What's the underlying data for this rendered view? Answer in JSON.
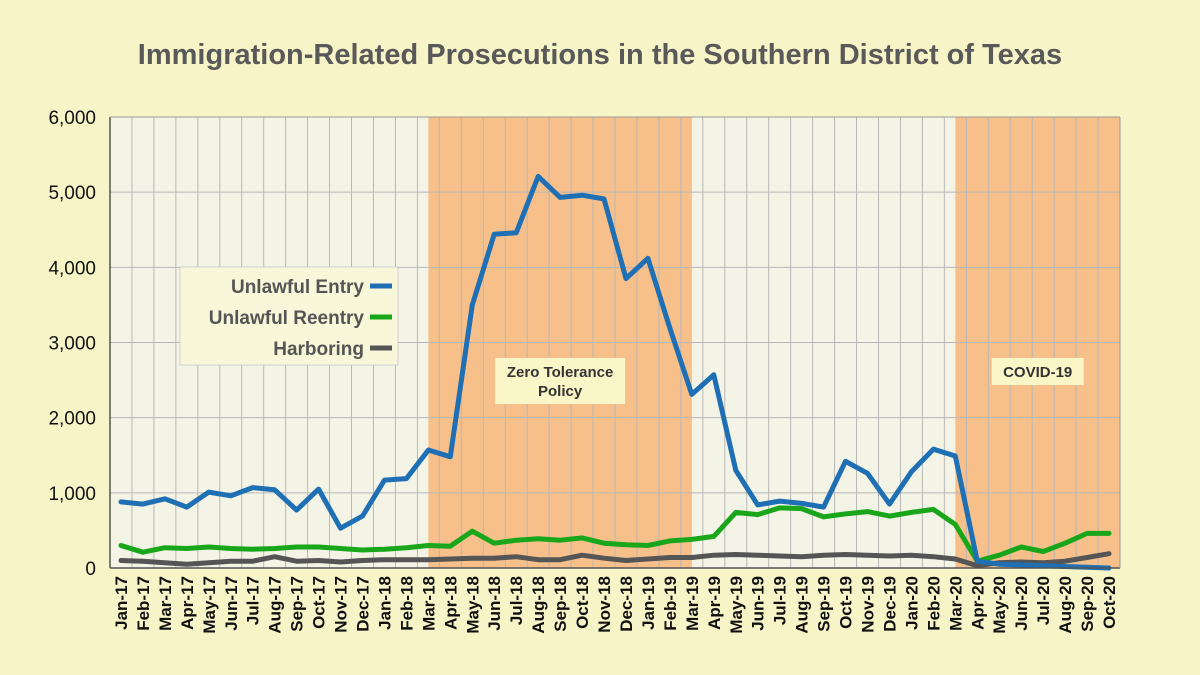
{
  "chart_data": {
    "type": "line",
    "title": "Immigration-Related Prosecutions in the Southern District of Texas",
    "xlabel": "",
    "ylabel": "",
    "ylim": [
      0,
      6000
    ],
    "yticks": [
      0,
      1000,
      2000,
      3000,
      4000,
      5000,
      6000
    ],
    "ytick_labels": [
      "0",
      "1,000",
      "2,000",
      "3,000",
      "4,000",
      "5,000",
      "6,000"
    ],
    "grid": true,
    "legend_position": "left",
    "categories": [
      "Jan-17",
      "Feb-17",
      "Mar-17",
      "Apr-17",
      "May-17",
      "Jun-17",
      "Jul-17",
      "Aug-17",
      "Sep-17",
      "Oct-17",
      "Nov-17",
      "Dec-17",
      "Jan-18",
      "Feb-18",
      "Mar-18",
      "Apr-18",
      "May-18",
      "Jun-18",
      "Jul-18",
      "Aug-18",
      "Sep-18",
      "Oct-18",
      "Nov-18",
      "Dec-18",
      "Jan-19",
      "Feb-19",
      "Mar-19",
      "Apr-19",
      "May-19",
      "Jun-19",
      "Jul-19",
      "Aug-19",
      "Sep-19",
      "Oct-19",
      "Nov-19",
      "Dec-19",
      "Jan-20",
      "Feb-20",
      "Mar-20",
      "Apr-20",
      "May-20",
      "Jun-20",
      "Jul-20",
      "Aug-20",
      "Sep-20",
      "Oct-20"
    ],
    "series": [
      {
        "name": "Unlawful Entry",
        "color": "#1f6fb4",
        "values": [
          880,
          850,
          920,
          810,
          1010,
          960,
          1070,
          1040,
          770,
          1050,
          530,
          690,
          1170,
          1190,
          1570,
          1480,
          3500,
          4440,
          4460,
          5210,
          4930,
          4960,
          4910,
          3850,
          4120,
          3190,
          2310,
          2570,
          1300,
          840,
          890,
          860,
          810,
          1420,
          1260,
          850,
          1280,
          1580,
          1490,
          90,
          50,
          40,
          30,
          20,
          10,
          0
        ]
      },
      {
        "name": "Unlawful Reentry",
        "color": "#1aa61a",
        "values": [
          300,
          210,
          270,
          260,
          280,
          260,
          250,
          260,
          280,
          280,
          260,
          240,
          250,
          270,
          300,
          290,
          490,
          330,
          370,
          390,
          370,
          400,
          330,
          310,
          300,
          360,
          380,
          420,
          740,
          710,
          800,
          790,
          680,
          720,
          750,
          690,
          740,
          780,
          580,
          90,
          170,
          280,
          220,
          330,
          460,
          460
        ]
      },
      {
        "name": "Harboring",
        "color": "#555555",
        "values": [
          100,
          90,
          70,
          50,
          70,
          90,
          90,
          150,
          90,
          100,
          80,
          100,
          110,
          110,
          110,
          120,
          130,
          130,
          150,
          110,
          110,
          170,
          130,
          100,
          120,
          140,
          140,
          170,
          180,
          170,
          160,
          150,
          170,
          180,
          170,
          160,
          170,
          150,
          120,
          30,
          70,
          80,
          70,
          90,
          140,
          190
        ]
      }
    ],
    "annotations": [
      {
        "text_lines": [
          "Zero Tolerance",
          "Policy"
        ],
        "start_category": "Mar-18",
        "end_category": "Mar-19",
        "shade": "#f7c08a"
      },
      {
        "text_lines": [
          "COVID-19"
        ],
        "start_category": "Mar-20",
        "end_category": "Oct-20",
        "shade": "#f7c08a"
      }
    ]
  }
}
